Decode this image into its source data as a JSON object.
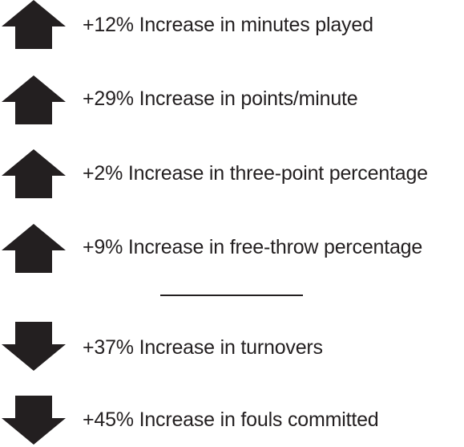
{
  "arrow_color": "#231f20",
  "positive": [
    {
      "direction": "up",
      "icon": "arrow-up-icon",
      "text": "+12% Increase in minutes played"
    },
    {
      "direction": "up",
      "icon": "arrow-up-icon",
      "text": "+29% Increase in points/minute"
    },
    {
      "direction": "up",
      "icon": "arrow-up-icon",
      "text": "+2% Increase in three-point percentage"
    },
    {
      "direction": "up",
      "icon": "arrow-up-icon",
      "text": "+9% Increase in free-throw percentage"
    }
  ],
  "negative": [
    {
      "direction": "down",
      "icon": "arrow-down-icon",
      "text": "+37% Increase in turnovers"
    },
    {
      "direction": "down",
      "icon": "arrow-down-icon",
      "text": "+45% Increase in fouls committed"
    }
  ]
}
